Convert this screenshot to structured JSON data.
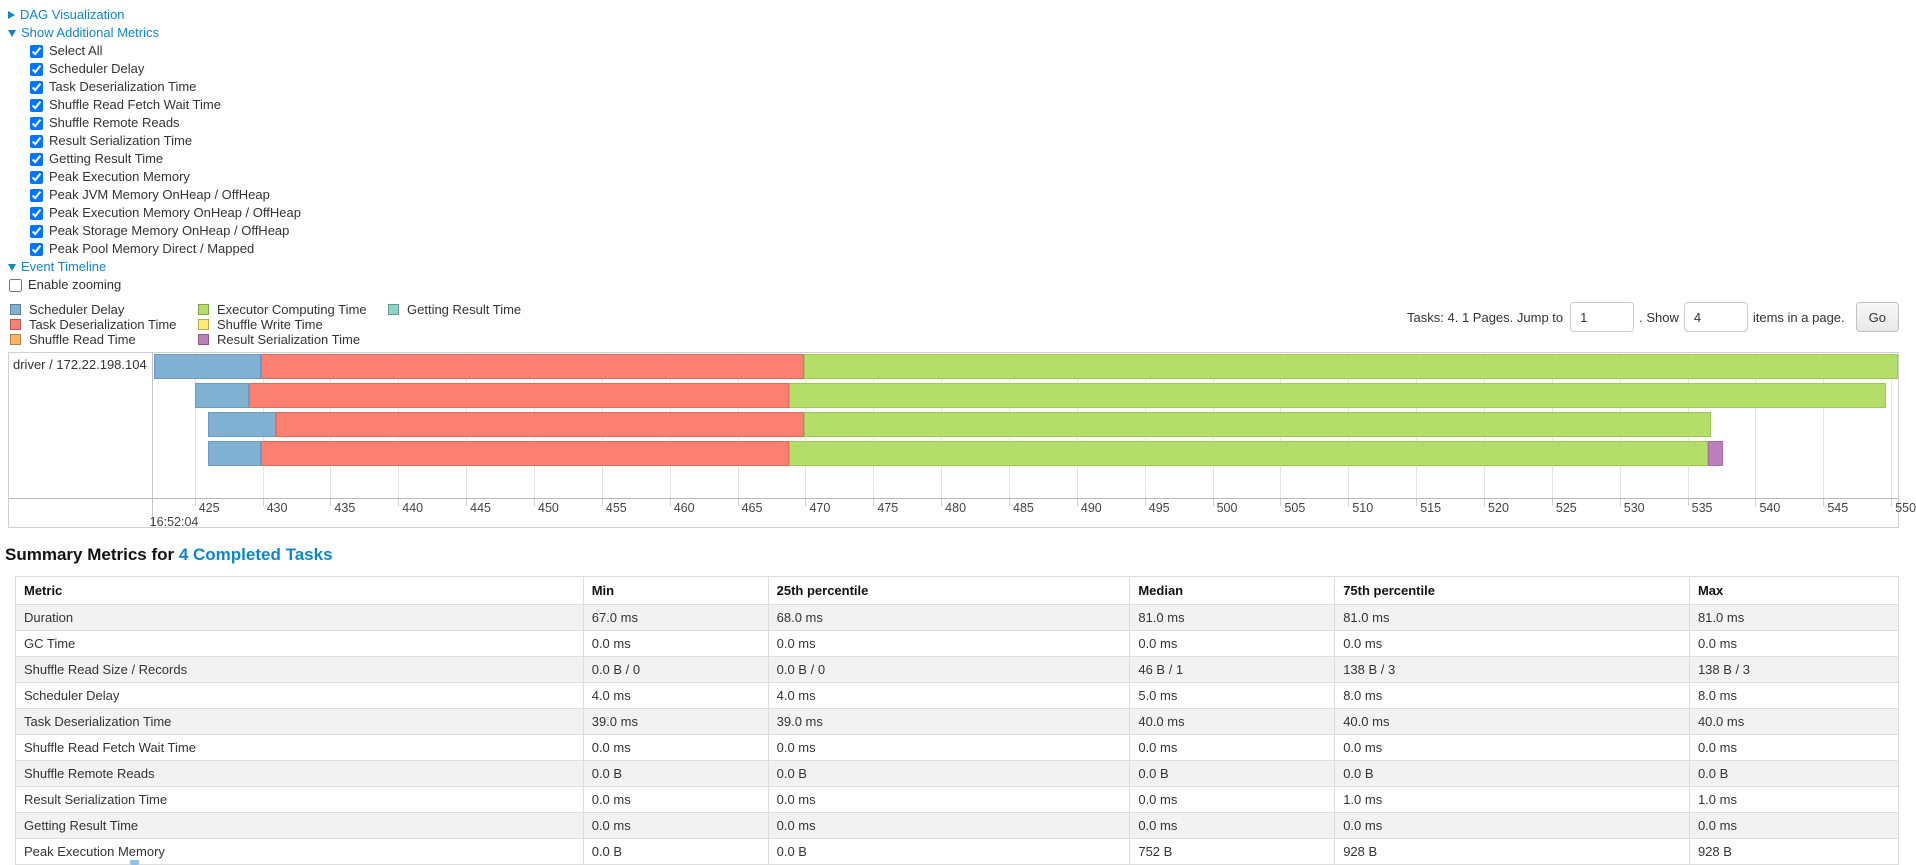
{
  "colors": {
    "link": "#0d87c9",
    "scheduler_delay": "#80B1D3",
    "task_deserialization": "#FB8072",
    "shuffle_read": "#FDB462",
    "executor_computing": "#B3DE69",
    "shuffle_write": "#FFED6F",
    "result_serialization": "#BC80BD",
    "getting_result": "#8DD3C7"
  },
  "colors_border": {
    "scheduler_delay": "#6a9cc0",
    "task_deserialization": "#e56a5d",
    "shuffle_read": "#e8994a",
    "executor_computing": "#9cc94f",
    "shuffle_write": "#e5d255",
    "result_serialization": "#a86aa9",
    "getting_result": "#72bcae"
  },
  "controls": {
    "items": [
      {
        "type": "section",
        "label": "DAG Visualization",
        "expanded": false
      },
      {
        "type": "section",
        "label": "Show Additional Metrics",
        "expanded": true
      },
      {
        "type": "checkbox",
        "label": "Select All",
        "checked": true,
        "indent": 1
      },
      {
        "type": "checkbox",
        "label": "Scheduler Delay",
        "checked": true,
        "indent": 1
      },
      {
        "type": "checkbox",
        "label": "Task Deserialization Time",
        "checked": true,
        "indent": 1
      },
      {
        "type": "checkbox",
        "label": "Shuffle Read Fetch Wait Time",
        "checked": true,
        "indent": 1
      },
      {
        "type": "checkbox",
        "label": "Shuffle Remote Reads",
        "checked": true,
        "indent": 1
      },
      {
        "type": "checkbox",
        "label": "Result Serialization Time",
        "checked": true,
        "indent": 1
      },
      {
        "type": "checkbox",
        "label": "Getting Result Time",
        "checked": true,
        "indent": 1
      },
      {
        "type": "checkbox",
        "label": "Peak Execution Memory",
        "checked": true,
        "indent": 1
      },
      {
        "type": "checkbox",
        "label": "Peak JVM Memory OnHeap / OffHeap",
        "checked": true,
        "indent": 1
      },
      {
        "type": "checkbox",
        "label": "Peak Execution Memory OnHeap / OffHeap",
        "checked": true,
        "indent": 1
      },
      {
        "type": "checkbox",
        "label": "Peak Storage Memory OnHeap / OffHeap",
        "checked": true,
        "indent": 1
      },
      {
        "type": "checkbox",
        "label": "Peak Pool Memory Direct / Mapped",
        "checked": true,
        "indent": 1
      },
      {
        "type": "section",
        "label": "Event Timeline",
        "expanded": true
      },
      {
        "type": "checkbox",
        "label": "Enable zooming",
        "checked": false,
        "indent": 0
      }
    ]
  },
  "legend": {
    "columns": [
      [
        {
          "key": "scheduler_delay",
          "label": "Scheduler Delay"
        },
        {
          "key": "task_deserialization",
          "label": "Task Deserialization Time"
        },
        {
          "key": "shuffle_read",
          "label": "Shuffle Read Time"
        }
      ],
      [
        {
          "key": "executor_computing",
          "label": "Executor Computing Time"
        },
        {
          "key": "shuffle_write",
          "label": "Shuffle Write Time"
        },
        {
          "key": "result_serialization",
          "label": "Result Serialization Time"
        }
      ],
      [
        {
          "key": "getting_result",
          "label": "Getting Result Time"
        }
      ]
    ]
  },
  "pagination": {
    "tasks_text": "Tasks: 4. 1 Pages. Jump to",
    "jump_value": "1",
    "show_label": ". Show",
    "show_value": "4",
    "items_label": "items in a page.",
    "go_label": "Go"
  },
  "chart_data": {
    "type": "timeline",
    "group_label": "driver / 172.22.198.104",
    "axis": {
      "min": 422.0,
      "max": 550.5,
      "ticks": [
        425,
        430,
        435,
        440,
        445,
        450,
        455,
        460,
        465,
        470,
        475,
        480,
        485,
        490,
        495,
        500,
        505,
        510,
        515,
        520,
        525,
        530,
        535,
        540,
        545,
        550
      ],
      "time_label": "16:52:04",
      "units": "ms within second 16:52:04"
    },
    "tasks": [
      {
        "segments": [
          {
            "metric": "scheduler_delay",
            "start": 422.0,
            "end": 429.9
          },
          {
            "metric": "task_deserialization",
            "start": 429.9,
            "end": 469.9
          },
          {
            "metric": "executor_computing",
            "start": 469.9,
            "end": 550.5
          }
        ]
      },
      {
        "segments": [
          {
            "metric": "scheduler_delay",
            "start": 425.0,
            "end": 429.0
          },
          {
            "metric": "task_deserialization",
            "start": 429.0,
            "end": 468.8
          },
          {
            "metric": "executor_computing",
            "start": 468.8,
            "end": 549.6
          }
        ]
      },
      {
        "segments": [
          {
            "metric": "scheduler_delay",
            "start": 426.0,
            "end": 431.0
          },
          {
            "metric": "task_deserialization",
            "start": 431.0,
            "end": 469.9
          },
          {
            "metric": "executor_computing",
            "start": 469.9,
            "end": 536.7
          }
        ]
      },
      {
        "segments": [
          {
            "metric": "scheduler_delay",
            "start": 426.0,
            "end": 429.9
          },
          {
            "metric": "task_deserialization",
            "start": 429.9,
            "end": 468.8
          },
          {
            "metric": "executor_computing",
            "start": 468.8,
            "end": 536.5
          },
          {
            "metric": "result_serialization",
            "start": 536.5,
            "end": 537.6
          }
        ]
      }
    ]
  },
  "summary": {
    "title_prefix": "Summary Metrics for ",
    "title_link": "4 Completed Tasks",
    "table": {
      "headers": [
        "Metric",
        "Min",
        "25th percentile",
        "Median",
        "75th percentile",
        "Max"
      ],
      "rows": [
        {
          "metric": "Duration",
          "values": [
            "67.0 ms",
            "68.0 ms",
            "81.0 ms",
            "81.0 ms",
            "81.0 ms"
          ]
        },
        {
          "metric": "GC Time",
          "values": [
            "0.0 ms",
            "0.0 ms",
            "0.0 ms",
            "0.0 ms",
            "0.0 ms"
          ]
        },
        {
          "metric": "Shuffle Read Size / Records",
          "values": [
            "0.0 B / 0",
            "0.0 B / 0",
            "46 B / 1",
            "138 B / 3",
            "138 B / 3"
          ]
        },
        {
          "metric": "Scheduler Delay",
          "values": [
            "4.0 ms",
            "4.0 ms",
            "5.0 ms",
            "8.0 ms",
            "8.0 ms"
          ]
        },
        {
          "metric": "Task Deserialization Time",
          "values": [
            "39.0 ms",
            "39.0 ms",
            "40.0 ms",
            "40.0 ms",
            "40.0 ms"
          ]
        },
        {
          "metric": "Shuffle Read Fetch Wait Time",
          "values": [
            "0.0 ms",
            "0.0 ms",
            "0.0 ms",
            "0.0 ms",
            "0.0 ms"
          ]
        },
        {
          "metric": "Shuffle Remote Reads",
          "values": [
            "0.0 B",
            "0.0 B",
            "0.0 B",
            "0.0 B",
            "0.0 B"
          ]
        },
        {
          "metric": "Result Serialization Time",
          "values": [
            "0.0 ms",
            "0.0 ms",
            "0.0 ms",
            "1.0 ms",
            "1.0 ms"
          ]
        },
        {
          "metric": "Getting Result Time",
          "values": [
            "0.0 ms",
            "0.0 ms",
            "0.0 ms",
            "0.0 ms",
            "0.0 ms"
          ]
        },
        {
          "metric": "Peak Execution Memory",
          "values": [
            "0.0 B",
            "0.0 B",
            "752 B",
            "928 B",
            "928 B"
          ]
        }
      ],
      "col_widths_pct": [
        30.15,
        9.82,
        19.21,
        10.88,
        18.84,
        11.1
      ]
    }
  }
}
